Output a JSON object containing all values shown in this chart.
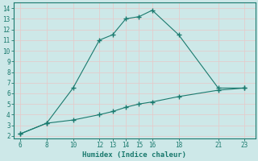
{
  "line1_x": [
    6,
    8,
    10,
    12,
    13,
    14,
    15,
    16,
    18,
    21,
    23
  ],
  "line1_y": [
    2.2,
    3.2,
    6.5,
    11.0,
    11.5,
    13.0,
    13.2,
    13.8,
    11.5,
    6.5,
    6.5
  ],
  "line2_x": [
    6,
    8,
    10,
    12,
    13,
    14,
    15,
    16,
    18,
    21,
    23
  ],
  "line2_y": [
    2.2,
    3.2,
    3.5,
    4.0,
    4.3,
    4.7,
    5.0,
    5.2,
    5.7,
    6.3,
    6.5
  ],
  "color": "#1a7a6e",
  "bg_color": "#cde8e8",
  "grid_color": "#e8c8c8",
  "xlabel": "Humidex (Indice chaleur)",
  "xticks": [
    6,
    8,
    10,
    12,
    13,
    14,
    15,
    16,
    18,
    21,
    23
  ],
  "yticks": [
    2,
    3,
    4,
    5,
    6,
    7,
    8,
    9,
    10,
    11,
    12,
    13,
    14
  ],
  "xlim": [
    5.5,
    23.8
  ],
  "ylim": [
    1.8,
    14.5
  ]
}
